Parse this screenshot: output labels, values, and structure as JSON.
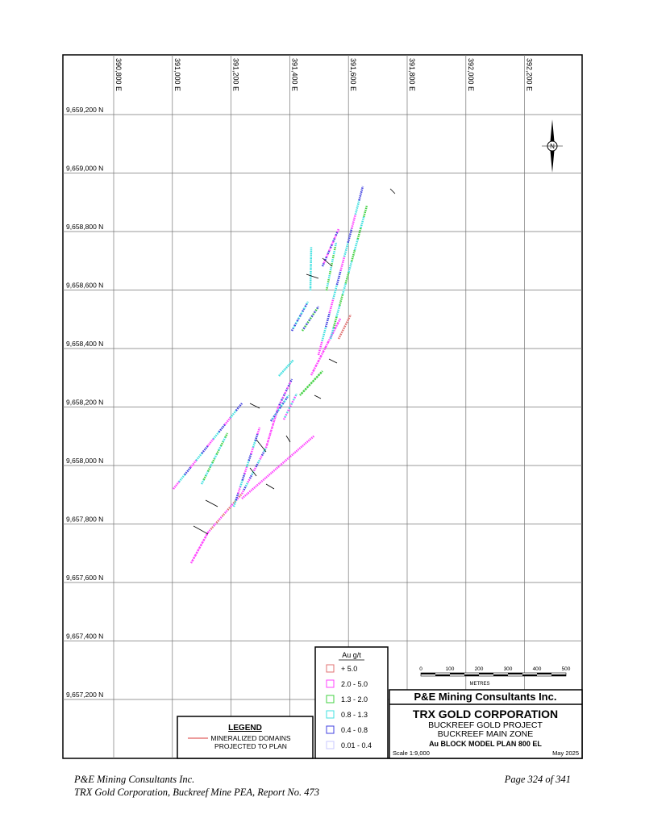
{
  "map": {
    "eastings": [
      "390,800 E",
      "391,000 E",
      "391,200 E",
      "391,400 E",
      "391,600 E",
      "391,800 E",
      "392,000 E",
      "392,200 E"
    ],
    "northings": [
      "9,659,200 N",
      "9,659,000 N",
      "9,658,800 N",
      "9,658,600 N",
      "9,658,400 N",
      "9,658,200 N",
      "9,658,000 N",
      "9,657,800 N",
      "9,657,600 N",
      "9,657,400 N",
      "9,657,200 N"
    ],
    "north_arrow": "N"
  },
  "grade_legend": {
    "title": "Au g/t",
    "items": [
      {
        "label": "+ 5.0",
        "color": "#e07070"
      },
      {
        "label": "2.0 - 5.0",
        "color": "#ff40ff"
      },
      {
        "label": "1.3 - 2.0",
        "color": "#40d040"
      },
      {
        "label": "0.8 - 1.3",
        "color": "#40e0e0"
      },
      {
        "label": "0.4 - 0.8",
        "color": "#4040e0"
      },
      {
        "label": "0.01 - 0.4",
        "color": "#c8c8ff"
      }
    ]
  },
  "legend": {
    "title": "LEGEND",
    "line_color": "#e06060",
    "label_lines": [
      "MINERALIZED DOMAINS",
      "PROJECTED TO PLAN"
    ]
  },
  "scale_bar": {
    "ticks": [
      "0",
      "100",
      "200",
      "300",
      "400",
      "500"
    ],
    "unit": "METRES"
  },
  "title_block": {
    "consultant": "P&E Mining Consultants Inc.",
    "company": "TRX GOLD CORPORATION",
    "project": "BUCKREEF GOLD PROJECT",
    "zone": "BUCKREEF MAIN ZONE",
    "plan": "Au BLOCK MODEL PLAN 800 EL",
    "scale": "Scale 1:9,000",
    "date": "May 2025"
  },
  "footer": {
    "left_lines": [
      "P&E Mining Consultants Inc.",
      "TRX Gold Corporation, Buckreef Mine PEA, Report No. 473"
    ],
    "page": "Page 324 of 341"
  }
}
